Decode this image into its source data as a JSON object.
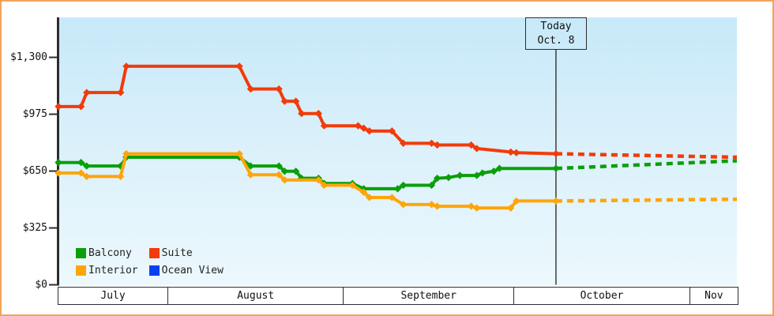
{
  "window": {
    "border_color": "#f2a45a",
    "background_color": "#ffffff"
  },
  "chart_data": {
    "type": "line",
    "title": "",
    "grid": false,
    "legend_position": "bottom-left-inside",
    "y_axis": {
      "min": 0,
      "max": 1300,
      "ticks": [
        {
          "label": "$0",
          "value": 0
        },
        {
          "label": "$325",
          "value": 325
        },
        {
          "label": "$650",
          "value": 650
        },
        {
          "label": "$975",
          "value": 975
        },
        {
          "label": "$1,300",
          "value": 1300
        }
      ]
    },
    "x_axis": {
      "total_days": 120,
      "months": [
        {
          "label": "July",
          "width_frac": 0.1606
        },
        {
          "label": "August",
          "width_frac": 0.2584
        },
        {
          "label": "September",
          "width_frac": 0.2509
        },
        {
          "label": "October",
          "width_frac": 0.259
        },
        {
          "label": "Nov",
          "width_frac": 0.0711
        }
      ]
    },
    "today": {
      "line1": "Today",
      "line2": "Oct. 8",
      "day": 88
    },
    "series": [
      {
        "name": "Balcony",
        "color": "#0a9f0a",
        "points": [
          [
            0,
            699
          ],
          [
            4,
            699
          ],
          [
            5,
            679
          ],
          [
            11,
            679
          ],
          [
            12,
            729
          ],
          [
            32,
            729
          ],
          [
            34,
            679
          ],
          [
            39,
            679
          ],
          [
            40,
            649
          ],
          [
            42,
            649
          ],
          [
            43,
            609
          ],
          [
            46,
            609
          ],
          [
            47,
            579
          ],
          [
            52,
            579
          ],
          [
            54,
            549
          ],
          [
            60,
            549
          ],
          [
            61,
            569
          ],
          [
            66,
            569
          ],
          [
            67,
            609
          ],
          [
            69,
            613
          ],
          [
            71,
            625
          ],
          [
            74,
            625
          ],
          [
            75,
            639
          ],
          [
            77,
            649
          ],
          [
            78,
            665
          ],
          [
            88,
            665
          ]
        ],
        "forecast": [
          [
            88,
            665
          ],
          [
            120,
            709
          ]
        ]
      },
      {
        "name": "Suite",
        "color": "#f23b0a",
        "points": [
          [
            0,
            1019
          ],
          [
            4,
            1019
          ],
          [
            5,
            1099
          ],
          [
            11,
            1099
          ],
          [
            12,
            1249
          ],
          [
            32,
            1249
          ],
          [
            34,
            1119
          ],
          [
            39,
            1119
          ],
          [
            40,
            1049
          ],
          [
            42,
            1049
          ],
          [
            43,
            979
          ],
          [
            46,
            979
          ],
          [
            47,
            909
          ],
          [
            53,
            909
          ],
          [
            54,
            895
          ],
          [
            55,
            879
          ],
          [
            59,
            879
          ],
          [
            61,
            809
          ],
          [
            66,
            809
          ],
          [
            67,
            799
          ],
          [
            73,
            799
          ],
          [
            74,
            779
          ],
          [
            80,
            759
          ],
          [
            81,
            755
          ],
          [
            88,
            749
          ]
        ],
        "forecast": [
          [
            88,
            749
          ],
          [
            120,
            729
          ]
        ]
      },
      {
        "name": "Interior",
        "color": "#ffa50a",
        "points": [
          [
            0,
            639
          ],
          [
            4,
            639
          ],
          [
            5,
            619
          ],
          [
            11,
            619
          ],
          [
            12,
            749
          ],
          [
            32,
            749
          ],
          [
            34,
            629
          ],
          [
            39,
            629
          ],
          [
            40,
            599
          ],
          [
            46,
            599
          ],
          [
            47,
            569
          ],
          [
            52,
            569
          ],
          [
            54,
            529
          ],
          [
            55,
            499
          ],
          [
            59,
            499
          ],
          [
            61,
            459
          ],
          [
            66,
            459
          ],
          [
            67,
            449
          ],
          [
            73,
            449
          ],
          [
            74,
            439
          ],
          [
            80,
            439
          ],
          [
            81,
            479
          ],
          [
            88,
            479
          ]
        ],
        "forecast": [
          [
            88,
            479
          ],
          [
            120,
            489
          ]
        ]
      },
      {
        "name": "Ocean View",
        "color": "#0541f0",
        "points": [],
        "forecast": []
      }
    ]
  }
}
